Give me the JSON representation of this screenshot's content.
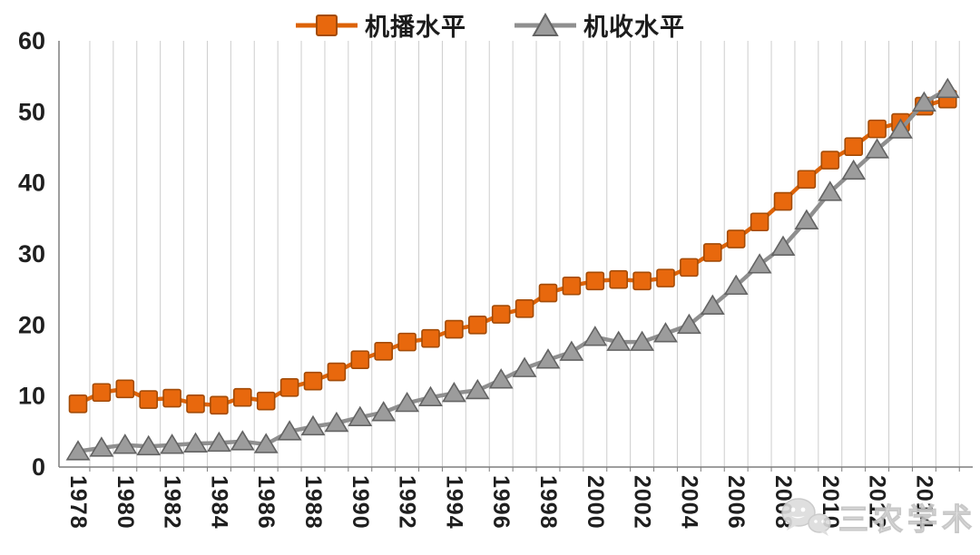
{
  "legend": {
    "items": [
      {
        "label": "机播水平",
        "marker": "square",
        "color": "#E8680D"
      },
      {
        "label": "机收水平",
        "marker": "triangle",
        "color": "#9C9C9C"
      }
    ]
  },
  "watermark": {
    "text": "三农学术",
    "icon": "speech-bubbles-logo"
  },
  "chart_data": {
    "type": "line",
    "title": "",
    "xlabel": "",
    "ylabel": "",
    "x": [
      1978,
      1979,
      1980,
      1981,
      1982,
      1983,
      1984,
      1985,
      1986,
      1987,
      1988,
      1989,
      1990,
      1991,
      1992,
      1993,
      1994,
      1995,
      1996,
      1997,
      1998,
      1999,
      2000,
      2001,
      2002,
      2003,
      2004,
      2005,
      2006,
      2007,
      2008,
      2009,
      2010,
      2011,
      2012,
      2013,
      2014,
      2015
    ],
    "x_tick_labels": [
      "1978",
      "1980",
      "1982",
      "1984",
      "1986",
      "1988",
      "1990",
      "1992",
      "1994",
      "1996",
      "1998",
      "2000",
      "2002",
      "2004",
      "2006",
      "2008",
      "2010",
      "2012",
      "2014"
    ],
    "yticks": [
      0,
      10,
      20,
      30,
      40,
      50,
      60
    ],
    "ylim": [
      0,
      60
    ],
    "grid": "vertical-only",
    "legend_position": "top-center",
    "series": [
      {
        "name": "机播水平",
        "marker": "square",
        "fill_color": "#E8680D",
        "line_color": "#DC6207",
        "edge_color": "#A34B06",
        "values": [
          8.9,
          10.5,
          11.0,
          9.5,
          9.7,
          8.9,
          8.7,
          9.8,
          9.3,
          11.2,
          12.1,
          13.4,
          15.1,
          16.3,
          17.6,
          18.1,
          19.4,
          20.0,
          21.5,
          22.3,
          24.5,
          25.5,
          26.2,
          26.4,
          26.2,
          26.6,
          28.1,
          30.2,
          32.1,
          34.5,
          37.4,
          40.5,
          43.2,
          45.1,
          47.6,
          48.5,
          50.8,
          51.8
        ]
      },
      {
        "name": "机收水平",
        "marker": "triangle",
        "fill_color": "#9C9C9C",
        "line_color": "#8F8F8F",
        "edge_color": "#636363",
        "values": [
          2.2,
          2.7,
          3.1,
          2.9,
          3.1,
          3.3,
          3.4,
          3.6,
          3.2,
          5.0,
          5.7,
          6.2,
          7.0,
          7.7,
          9.0,
          9.8,
          10.4,
          10.8,
          12.3,
          13.9,
          15.1,
          16.2,
          18.3,
          17.6,
          17.6,
          18.8,
          20.0,
          22.7,
          25.5,
          28.5,
          31.0,
          34.7,
          38.7,
          41.7,
          44.7,
          47.5,
          51.3,
          53.2
        ]
      }
    ],
    "colors": {
      "grid": "#CDCDCD",
      "axis": "#7F7F7F",
      "tick_text": "#1f1f1f",
      "background": "#ffffff"
    }
  }
}
